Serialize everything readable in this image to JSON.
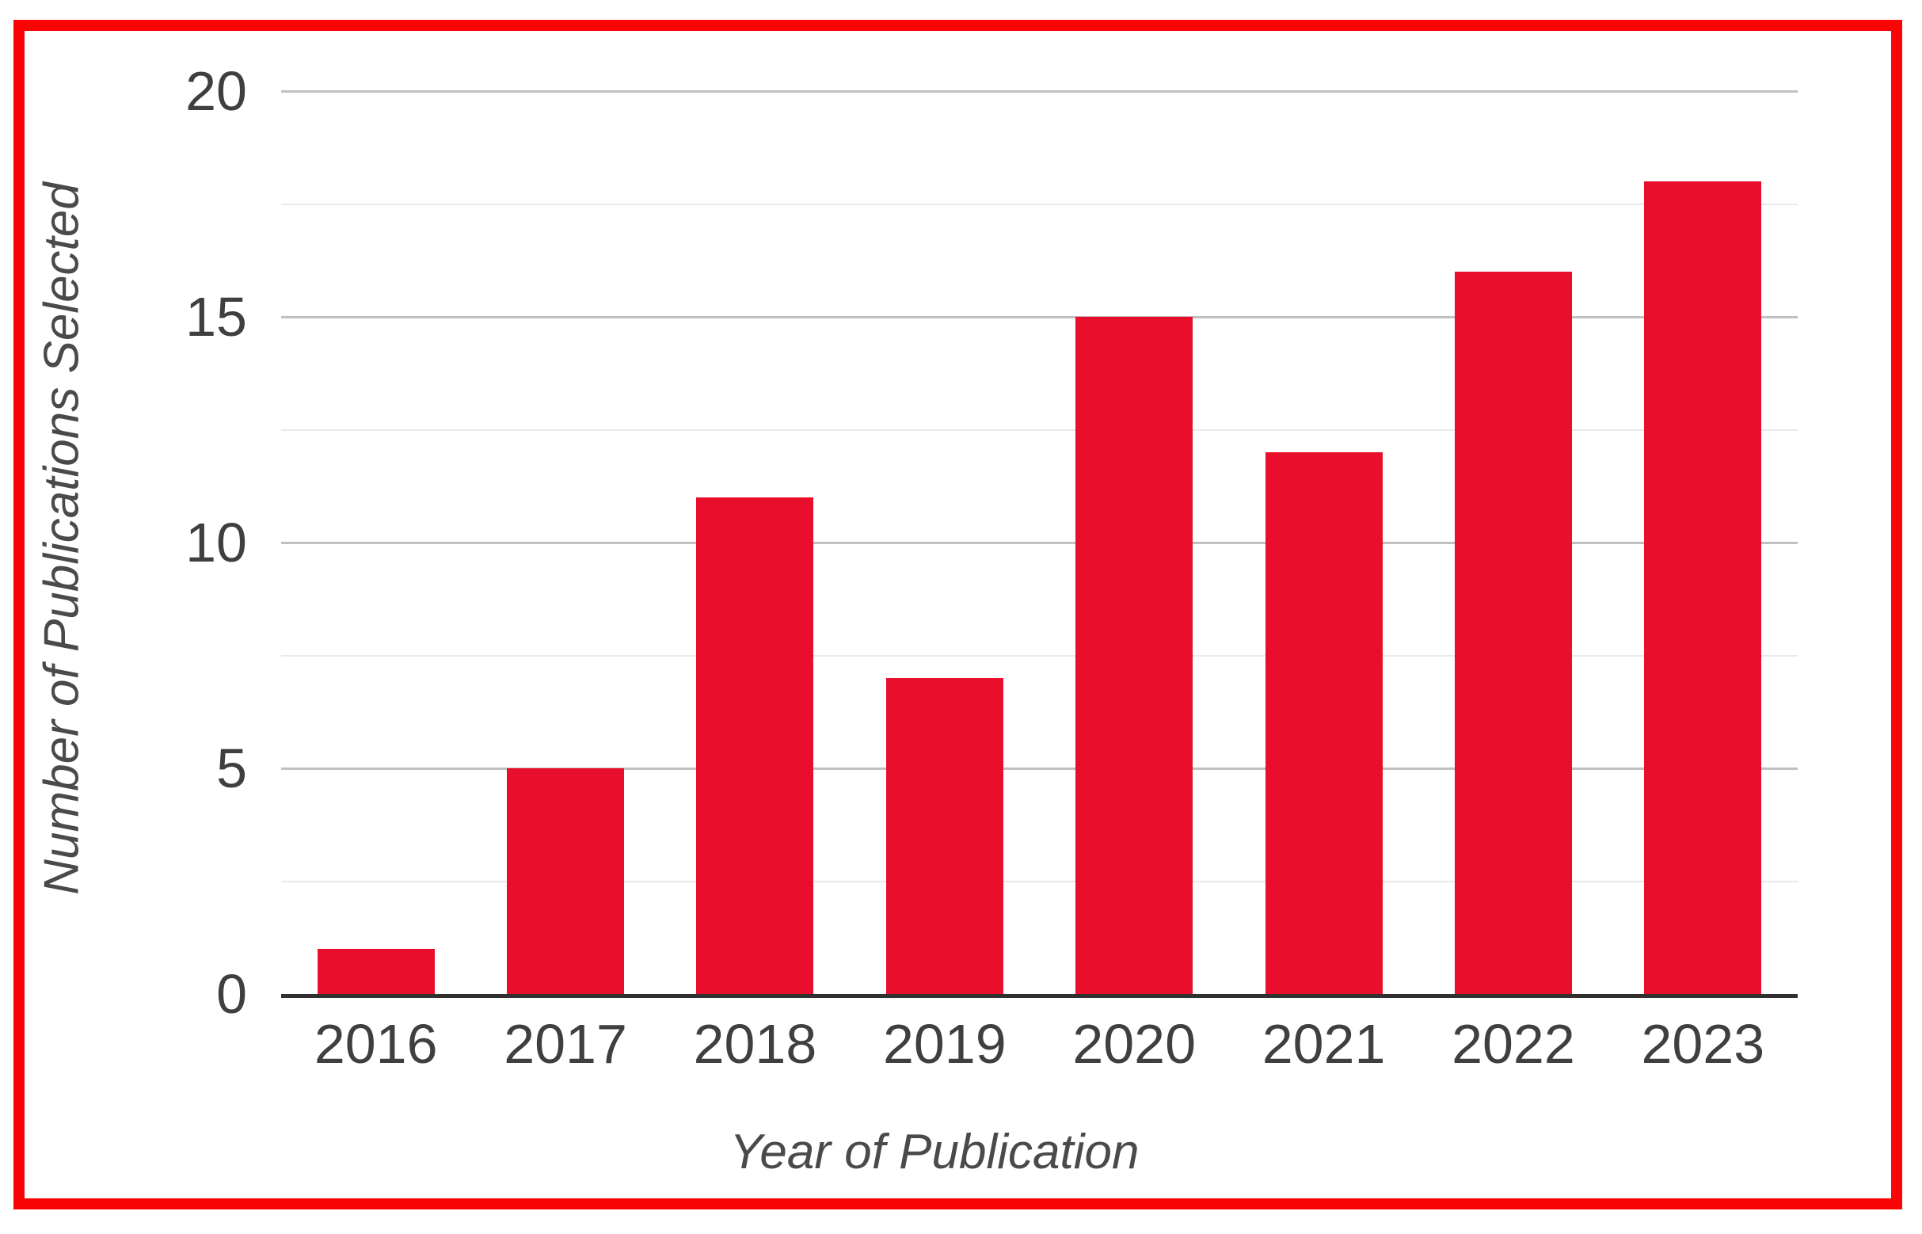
{
  "chart_data": {
    "type": "bar",
    "title": "",
    "categories": [
      "2016",
      "2017",
      "2018",
      "2019",
      "2020",
      "2021",
      "2022",
      "2023"
    ],
    "values": [
      1,
      5,
      11,
      7,
      15,
      12,
      16,
      18
    ],
    "xlabel": "Year of Publication",
    "ylabel": "Number of Publications Selected",
    "ylim": [
      0,
      20
    ],
    "yticks": [
      0,
      5,
      10,
      15,
      20
    ],
    "minor_gridlines": [
      2.5,
      7.5,
      12.5,
      17.5
    ],
    "grid": "horizontal",
    "legend_position": "none"
  },
  "colors": {
    "bar": "#e90e2c",
    "frame_border": "#fa0505",
    "major_gridline": "#c0c0c0",
    "minor_gridline": "#e9e9e9",
    "axis_line": "#303030",
    "tick_label": "#3f3f3f",
    "axis_title": "#4a4a4a",
    "background": "#ffffff"
  }
}
